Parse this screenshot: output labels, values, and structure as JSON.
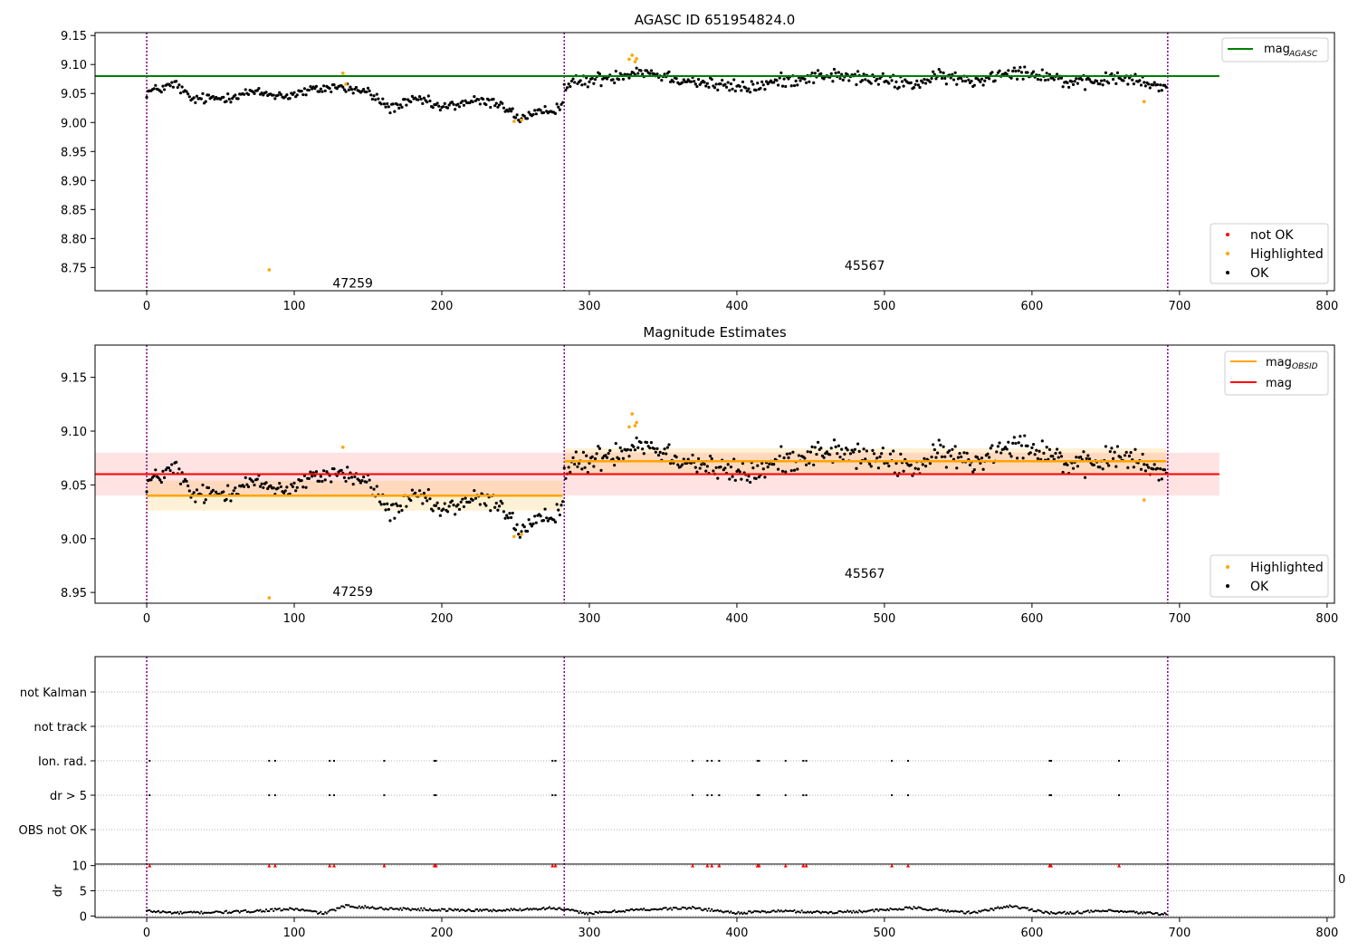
{
  "chart_data": [
    {
      "type": "scatter",
      "title": "AGASC ID 651954824.0",
      "xlim": [
        -35,
        805
      ],
      "ylim": [
        8.71,
        9.155
      ],
      "xticks": [
        "0",
        "100",
        "200",
        "300",
        "400",
        "500",
        "600",
        "700",
        "800"
      ],
      "yticks": [
        "8.75",
        "8.80",
        "8.85",
        "8.90",
        "8.95",
        "9.00",
        "9.05",
        "9.10",
        "9.15"
      ],
      "obsid_boundaries": [
        0,
        283,
        692
      ],
      "obsid_labels": [
        {
          "x": 126,
          "y": 8.723,
          "text": "47259"
        },
        {
          "x": 473,
          "y": 8.754,
          "text": "45567"
        }
      ],
      "reference_line": {
        "name": "mag",
        "subscript": "AGASC",
        "y": 9.08,
        "x": [
          -35,
          727
        ],
        "color": "#008000"
      },
      "segments": [
        {
          "x_start": 0,
          "x_end": 282,
          "anchors": [
            [
              0,
              9.052
            ],
            [
              20,
              9.066
            ],
            [
              30,
              9.04
            ],
            [
              50,
              9.042
            ],
            [
              70,
              9.052
            ],
            [
              95,
              9.046
            ],
            [
              115,
              9.057
            ],
            [
              130,
              9.062
            ],
            [
              150,
              9.052
            ],
            [
              165,
              9.025
            ],
            [
              185,
              9.04
            ],
            [
              200,
              9.025
            ],
            [
              220,
              9.037
            ],
            [
              240,
              9.033
            ],
            [
              252,
              9.007
            ],
            [
              265,
              9.014
            ],
            [
              282,
              9.03
            ]
          ],
          "noise": 0.007
        },
        {
          "x_start": 283,
          "x_end": 691,
          "anchors": [
            [
              283,
              9.066
            ],
            [
              300,
              9.072
            ],
            [
              320,
              9.082
            ],
            [
              335,
              9.09
            ],
            [
              355,
              9.078
            ],
            [
              390,
              9.063
            ],
            [
              410,
              9.06
            ],
            [
              430,
              9.072
            ],
            [
              460,
              9.082
            ],
            [
              490,
              9.075
            ],
            [
              520,
              9.066
            ],
            [
              540,
              9.08
            ],
            [
              560,
              9.07
            ],
            [
              585,
              9.09
            ],
            [
              610,
              9.082
            ],
            [
              630,
              9.065
            ],
            [
              660,
              9.078
            ],
            [
              680,
              9.065
            ],
            [
              691,
              9.06
            ]
          ],
          "noise": 0.009
        }
      ],
      "highlighted_points": [
        [
          83,
          8.746
        ],
        [
          133,
          9.085
        ],
        [
          135,
          9.066
        ],
        [
          249,
          9.002
        ],
        [
          254,
          9.004
        ],
        [
          327,
          9.109
        ],
        [
          329,
          9.116
        ],
        [
          331,
          9.105
        ],
        [
          332,
          9.11
        ],
        [
          676,
          9.036
        ]
      ],
      "legend_upper": {
        "position": "upper right",
        "entries": [
          {
            "label": "mag",
            "subscript": "AGASC",
            "color": "#008000"
          }
        ]
      },
      "legend_lower": {
        "position": "lower right",
        "entries": [
          {
            "label": "not OK",
            "color": "#ff0000"
          },
          {
            "label": "Highlighted",
            "color": "#ffa500"
          },
          {
            "label": "OK",
            "color": "#000000"
          }
        ]
      }
    },
    {
      "type": "scatter",
      "title": "Magnitude Estimates",
      "xlim": [
        -35,
        805
      ],
      "ylim": [
        8.94,
        9.18
      ],
      "xticks": [
        "0",
        "100",
        "200",
        "300",
        "400",
        "500",
        "600",
        "700",
        "800"
      ],
      "yticks": [
        "8.95",
        "9.00",
        "9.05",
        "9.10",
        "9.15"
      ],
      "obsid_boundaries": [
        0,
        283,
        692
      ],
      "obsid_labels": [
        {
          "x": 126,
          "y": 8.951,
          "text": "47259"
        },
        {
          "x": 473,
          "y": 8.968,
          "text": "45567"
        }
      ],
      "mag": {
        "name": "mag",
        "y": 9.06,
        "band": [
          9.04,
          9.08
        ],
        "x": [
          -35,
          727
        ],
        "color": "#ff0000"
      },
      "mag_obsid": [
        {
          "x": [
            0,
            282
          ],
          "y": 9.04,
          "band": [
            9.026,
            9.054
          ]
        },
        {
          "x": [
            283,
            691
          ],
          "y": 9.072,
          "band": [
            9.06,
            9.084
          ]
        }
      ],
      "highlighted_points": [
        [
          83,
          8.945
        ],
        [
          133,
          9.085
        ],
        [
          249,
          9.002
        ],
        [
          254,
          9.004
        ],
        [
          327,
          9.104
        ],
        [
          329,
          9.116
        ],
        [
          331,
          9.105
        ],
        [
          332,
          9.108
        ],
        [
          676,
          9.036
        ]
      ],
      "legend_upper": {
        "position": "upper right",
        "entries": [
          {
            "label": "mag",
            "subscript": "OBSID",
            "color": "#ffa500"
          },
          {
            "label": "mag",
            "color": "#ff0000"
          }
        ]
      },
      "legend_lower": {
        "position": "lower right",
        "entries": [
          {
            "label": "Highlighted",
            "color": "#ffa500"
          },
          {
            "label": "OK",
            "color": "#000000"
          }
        ]
      }
    },
    {
      "type": "scatter",
      "xlim": [
        -35,
        805
      ],
      "flag_rows": [
        "not Kalman",
        "not track",
        "Ion. rad.",
        "dr > 5",
        "OBS not OK"
      ],
      "flag_points": [
        2,
        83,
        87,
        124,
        127,
        161,
        195,
        196,
        275,
        277,
        370,
        380,
        383,
        388,
        414,
        415,
        433,
        445,
        447,
        505,
        516,
        612,
        613,
        659
      ],
      "flag_rows_marked": [
        "Ion. rad.",
        "dr > 5"
      ]
    },
    {
      "type": "scatter",
      "ylabel": "dr",
      "xlim": [
        -35,
        805
      ],
      "ylim": [
        -0.3,
        10.3
      ],
      "xticks": [
        "0",
        "100",
        "200",
        "300",
        "400",
        "500",
        "600",
        "700",
        "800"
      ],
      "yticks": [
        "0",
        "5",
        "10"
      ],
      "dr_marker_value": 10,
      "dr_anchors": [
        [
          0,
          1.0
        ],
        [
          20,
          0.6
        ],
        [
          60,
          0.8
        ],
        [
          100,
          1.4
        ],
        [
          120,
          0.5
        ],
        [
          135,
          2.0
        ],
        [
          160,
          1.5
        ],
        [
          200,
          1.2
        ],
        [
          240,
          1.1
        ],
        [
          275,
          1.6
        ],
        [
          300,
          0.5
        ],
        [
          330,
          1.2
        ],
        [
          370,
          1.6
        ],
        [
          400,
          0.6
        ],
        [
          430,
          1.0
        ],
        [
          460,
          0.7
        ],
        [
          490,
          1.0
        ],
        [
          520,
          1.6
        ],
        [
          560,
          0.6
        ],
        [
          585,
          2.0
        ],
        [
          615,
          0.5
        ],
        [
          650,
          1.0
        ],
        [
          690,
          0.4
        ]
      ],
      "clipped_tick_fragment": "0"
    }
  ]
}
